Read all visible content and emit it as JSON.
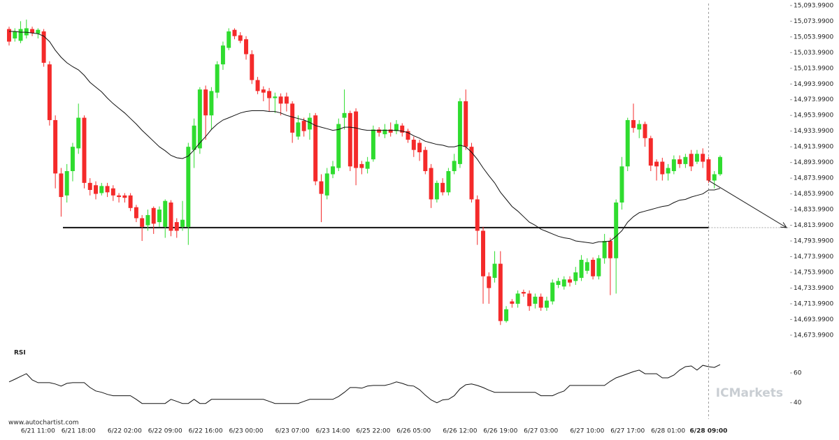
{
  "chart_data": {
    "type": "candlestick",
    "categories": [
      null,
      null,
      null,
      null,
      null,
      "6/21 11:00",
      null,
      null,
      null,
      null,
      null,
      null,
      "6/21 18:00",
      null,
      null,
      null,
      null,
      null,
      null,
      null,
      "6/22 02:00",
      null,
      null,
      null,
      null,
      null,
      null,
      "6/22 09:00",
      null,
      null,
      null,
      null,
      null,
      null,
      "6/22 16:00",
      null,
      null,
      null,
      null,
      null,
      null,
      "6/23 00:00",
      null,
      null,
      null,
      null,
      null,
      null,
      null,
      "6/23 07:00",
      null,
      null,
      null,
      null,
      null,
      null,
      "6/23 14:00",
      null,
      null,
      null,
      null,
      null,
      null,
      "6/25 22:00",
      null,
      null,
      null,
      null,
      null,
      null,
      "6/26 05:00",
      null,
      null,
      null,
      null,
      null,
      null,
      null,
      "6/26 12:00",
      null,
      null,
      null,
      null,
      null,
      null,
      "6/26 19:00",
      null,
      null,
      null,
      null,
      null,
      null,
      "6/27 03:00",
      null,
      null,
      null,
      null,
      null,
      null,
      null,
      "6/27 10:00",
      null,
      null,
      null,
      null,
      null,
      null,
      "6/27 17:00",
      null,
      null,
      null,
      null,
      null,
      null,
      "6/28 01:00",
      null,
      null,
      null,
      null,
      null,
      null,
      "6/28 09:00",
      null,
      null
    ],
    "open": [
      15064,
      15052,
      15049,
      15056,
      15064,
      15058,
      15061,
      15019,
      14948,
      14880,
      14852,
      14883,
      14912,
      14951,
      14868,
      14865,
      14855,
      14864,
      14861,
      14852,
      14852,
      14852,
      14837,
      14823,
      14814,
      14836,
      14818,
      14812,
      14843,
      14818,
      14812,
      14812,
      14910,
      14912,
      14987,
      14954,
      14983,
      15019,
      15040,
      15063,
      15056,
      15051,
      15032,
      14999,
      14987,
      14985,
      14976,
      14978,
      14978,
      14969,
      14927,
      14947,
      14936,
      14954,
      14870,
      14852,
      14879,
      14887,
      14951,
      14957,
      14959,
      14892,
      14886,
      14898,
      14936,
      14930,
      14936,
      14934,
      14941,
      14934,
      14923,
      14919,
      14910,
      14887,
      14847,
      14868,
      14856,
      14883,
      14892,
      14972,
      14914,
      14847,
      14807,
      14749,
      14747,
      14765,
      14692,
      14717,
      14714,
      14729,
      14727,
      14714,
      14723,
      14709,
      14717,
      14738,
      14736,
      14745,
      14743,
      14747,
      14756,
      14770,
      14749,
      14772,
      14794,
      14772,
      14843,
      14889,
      14948,
      14936,
      14943,
      14925,
      14895,
      14895,
      14880,
      14883,
      14898,
      14892,
      14905,
      14895,
      14905,
      14898,
      14871,
      14879
    ],
    "high": [
      15067,
      15065,
      15074,
      15076,
      15067,
      15065,
      15064,
      15023,
      14954,
      14887,
      14892,
      14919,
      14969,
      14954,
      14874,
      14870,
      14868,
      14868,
      14865,
      14855,
      14855,
      14855,
      14840,
      14827,
      14834,
      14838,
      14838,
      14847,
      14846,
      14823,
      14845,
      14919,
      14950,
      14990,
      14992,
      14990,
      15023,
      15048,
      15065,
      15065,
      15060,
      15055,
      15037,
      15003,
      14991,
      14989,
      14983,
      14982,
      14983,
      14972,
      14954,
      14951,
      14957,
      14957,
      14879,
      14887,
      14896,
      14950,
      14987,
      14960,
      14963,
      14896,
      14901,
      14941,
      14939,
      14943,
      14945,
      14948,
      14944,
      14937,
      14927,
      14923,
      14914,
      14892,
      14871,
      14874,
      14887,
      14905,
      14976,
      14987,
      14919,
      14852,
      14812,
      14754,
      14781,
      14781,
      14711,
      14720,
      14731,
      14732,
      14731,
      14727,
      14727,
      14723,
      14745,
      14747,
      14749,
      14749,
      14761,
      14776,
      14772,
      14773,
      14776,
      14803,
      14798,
      14847,
      14901,
      14951,
      14969,
      14948,
      14946,
      14928,
      14898,
      14900,
      14892,
      14903,
      14903,
      14905,
      14910,
      14910,
      14912,
      14901,
      14883,
      14903
    ],
    "low": [
      15043,
      15048,
      15046,
      15052,
      15055,
      15052,
      15016,
      14941,
      14861,
      14825,
      14843,
      14870,
      14905,
      14861,
      14852,
      14847,
      14852,
      14850,
      14845,
      14843,
      14843,
      14832,
      14818,
      14794,
      14807,
      14803,
      14812,
      14798,
      14800,
      14798,
      14807,
      14789,
      14887,
      14905,
      14923,
      14936,
      14976,
      15012,
      15037,
      15051,
      15046,
      15025,
      14994,
      14981,
      14972,
      14959,
      14957,
      14954,
      14959,
      14919,
      14923,
      14927,
      14923,
      14865,
      14818,
      14847,
      14874,
      14883,
      14936,
      14883,
      14865,
      14879,
      14880,
      14895,
      14927,
      14925,
      14927,
      14930,
      14927,
      14919,
      14901,
      14896,
      14879,
      14836,
      14843,
      14852,
      14852,
      14879,
      14887,
      14910,
      14843,
      14789,
      14714,
      14714,
      14741,
      14687,
      14690,
      14709,
      14709,
      14723,
      14705,
      14708,
      14705,
      14705,
      14713,
      14734,
      14732,
      14736,
      14738,
      14743,
      14752,
      14745,
      14745,
      14765,
      14725,
      14727,
      14834,
      14883,
      14932,
      14925,
      14914,
      14883,
      14871,
      14871,
      14871,
      14879,
      14887,
      14887,
      14883,
      14892,
      14887,
      14868,
      14861,
      14877
    ],
    "close": [
      15048,
      15061,
      15064,
      15065,
      15059,
      15063,
      15021,
      14948,
      14880,
      14850,
      14883,
      14914,
      14951,
      14868,
      14859,
      14854,
      14864,
      14856,
      14852,
      14850,
      14849,
      14836,
      14823,
      14812,
      14827,
      14816,
      14834,
      14845,
      14807,
      14807,
      14821,
      14914,
      14941,
      14987,
      14954,
      14985,
      15019,
      15043,
      15061,
      15055,
      15049,
      15032,
      14999,
      14985,
      14983,
      14976,
      14978,
      14969,
      14969,
      14932,
      14945,
      14934,
      14951,
      14870,
      14854,
      14880,
      14889,
      14943,
      14957,
      14889,
      14887,
      14887,
      14895,
      14936,
      14932,
      14936,
      14932,
      14943,
      14932,
      14923,
      14910,
      14907,
      14883,
      14847,
      14868,
      14856,
      14883,
      14896,
      14972,
      14914,
      14847,
      14807,
      14749,
      14734,
      14765,
      14692,
      14707,
      14714,
      14727,
      14727,
      14711,
      14723,
      14709,
      14718,
      14741,
      14743,
      14745,
      14741,
      14754,
      14770,
      14767,
      14749,
      14772,
      14794,
      14772,
      14843,
      14889,
      14948,
      14938,
      14943,
      14925,
      14890,
      14889,
      14879,
      14887,
      14898,
      14892,
      14901,
      14889,
      14905,
      14895,
      14871,
      14879,
      14901
    ],
    "up_color": "#2fdc2f",
    "down_color": "#f42a2a",
    "ylim": [
      14665,
      15101
    ],
    "yticks": [
      {
        "value": 15093.99,
        "label": "15,093.9900"
      },
      {
        "value": 15073.99,
        "label": "15,073.9900"
      },
      {
        "value": 15053.99,
        "label": "15,053.9900"
      },
      {
        "value": 15033.99,
        "label": "15,033.9900"
      },
      {
        "value": 15013.99,
        "label": "15,013.9900"
      },
      {
        "value": 14993.99,
        "label": "14,993.9900"
      },
      {
        "value": 14973.99,
        "label": "14,973.9900"
      },
      {
        "value": 14953.99,
        "label": "14,953.9900"
      },
      {
        "value": 14933.99,
        "label": "14,933.9900"
      },
      {
        "value": 14913.99,
        "label": "14,913.9900"
      },
      {
        "value": 14893.99,
        "label": "14,893.9900"
      },
      {
        "value": 14873.99,
        "label": "14,873.9900"
      },
      {
        "value": 14853.99,
        "label": "14,853.9900"
      },
      {
        "value": 14833.99,
        "label": "14,833.9900"
      },
      {
        "value": 14813.99,
        "label": "14,813.9900"
      },
      {
        "value": 14793.99,
        "label": "14,793.9900"
      },
      {
        "value": 14773.99,
        "label": "14,773.9900"
      },
      {
        "value": 14753.99,
        "label": "14,753.9900"
      },
      {
        "value": 14733.99,
        "label": "14,733.9900"
      },
      {
        "value": 14713.99,
        "label": "14,713.9900"
      },
      {
        "value": 14693.99,
        "label": "14,693.9900"
      },
      {
        "value": 14673.99,
        "label": "14,673.9900"
      }
    ],
    "grid": false,
    "overlays": [
      {
        "type": "line",
        "color": "#111111",
        "values": [
          15061,
          15061,
          15060,
          15060,
          15059,
          15058,
          15055,
          15048,
          15037,
          15028,
          15021,
          15016,
          15012,
          15005,
          14996,
          14990,
          14984,
          14976,
          14969,
          14963,
          14957,
          14950,
          14943,
          14935,
          14928,
          14921,
          14914,
          14909,
          14903,
          14900,
          14899,
          14902,
          14910,
          14919,
          14927,
          14936,
          14943,
          14948,
          14951,
          14954,
          14957,
          14959,
          14960,
          14960,
          14960,
          14959,
          14959,
          14957,
          14954,
          14952,
          14950,
          14948,
          14945,
          14941,
          14939,
          14937,
          14935,
          14936,
          14939,
          14939,
          14938,
          14936,
          14935,
          14935,
          14935,
          14935,
          14935,
          14935,
          14934,
          14932,
          14928,
          14925,
          14921,
          14919,
          14917,
          14916,
          14914,
          14914,
          14916,
          14914,
          14907,
          14898,
          14887,
          14877,
          14868,
          14856,
          14847,
          14838,
          14832,
          14825,
          14818,
          14814,
          14809,
          14806,
          14803,
          14800,
          14798,
          14797,
          14794,
          14793,
          14792,
          14791,
          14793,
          14793,
          14794,
          14800,
          14807,
          14818,
          14825,
          14830,
          14832,
          14834,
          14836,
          14838,
          14839,
          14843,
          14846,
          14847,
          14850,
          14852,
          14854,
          14859,
          14859,
          14861
        ]
      }
    ],
    "support_level": 14811,
    "forecast": {
      "from": 14871,
      "to": 14811
    },
    "indicator": {
      "type": "line",
      "title": "RSI",
      "color": "#111111",
      "ylim": [
        30,
        75
      ],
      "yticks": [
        60,
        40
      ],
      "values": [
        54.0,
        55.8,
        57.7,
        59.5,
        55.3,
        53.5,
        53.5,
        53.5,
        52.6,
        51.2,
        53.0,
        53.5,
        53.5,
        53.5,
        50.2,
        47.9,
        47.0,
        45.6,
        44.7,
        44.7,
        44.7,
        44.7,
        42.3,
        39.5,
        39.5,
        39.5,
        39.5,
        39.5,
        42.3,
        40.9,
        39.5,
        39.5,
        42.3,
        39.5,
        39.5,
        42.3,
        42.3,
        42.3,
        42.3,
        42.3,
        42.3,
        42.3,
        42.3,
        42.3,
        42.3,
        40.9,
        39.5,
        39.5,
        39.5,
        39.5,
        39.5,
        40.9,
        42.3,
        42.3,
        42.3,
        42.3,
        42.3,
        44.2,
        47.0,
        50.2,
        50.2,
        49.8,
        51.2,
        51.6,
        51.6,
        51.6,
        52.6,
        54.0,
        53.0,
        51.6,
        51.2,
        48.8,
        45.1,
        41.9,
        40.0,
        41.9,
        42.3,
        44.7,
        49.3,
        52.1,
        52.6,
        51.6,
        50.2,
        48.4,
        47.0,
        47.0,
        47.0,
        47.0,
        47.0,
        47.0,
        47.0,
        47.0,
        44.7,
        44.7,
        44.7,
        46.5,
        47.9,
        51.6,
        51.6,
        51.6,
        51.6,
        51.6,
        51.6,
        51.6,
        54.4,
        56.7,
        58.1,
        59.5,
        60.9,
        61.9,
        59.5,
        59.5,
        59.5,
        56.7,
        56.7,
        58.6,
        61.9,
        64.2,
        64.7,
        61.9,
        65.1,
        64.2,
        63.7,
        65.6
      ]
    },
    "source": "www.autochartist.com",
    "watermark": "ICMarkets"
  }
}
